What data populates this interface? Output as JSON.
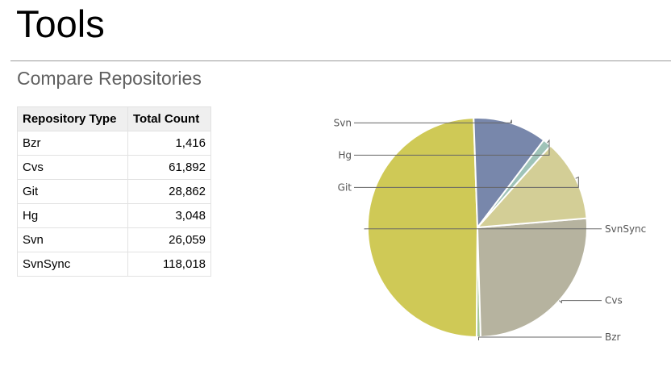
{
  "header": {
    "title": "Tools"
  },
  "section": {
    "title": "Compare Repositories"
  },
  "table": {
    "headers": [
      "Repository Type",
      "Total Count"
    ],
    "rows": [
      {
        "type": "Bzr",
        "count": "1,416"
      },
      {
        "type": "Cvs",
        "count": "61,892"
      },
      {
        "type": "Git",
        "count": "28,862"
      },
      {
        "type": "Hg",
        "count": "3,048"
      },
      {
        "type": "Svn",
        "count": "26,059"
      },
      {
        "type": "SvnSync",
        "count": "118,018"
      }
    ]
  },
  "chart_data": {
    "type": "pie",
    "categories": [
      "SvnSync",
      "Bzr",
      "Cvs",
      "Git",
      "Hg",
      "Svn"
    ],
    "values": [
      118018,
      1416,
      61892,
      28862,
      3048,
      26059
    ],
    "colors": [
      "#cfc956",
      "#a6c694",
      "#b6b39f",
      "#d3ce96",
      "#9fc3b8",
      "#7887ab"
    ],
    "label_positions": [
      "right",
      "right",
      "right",
      "left",
      "left",
      "left"
    ]
  }
}
